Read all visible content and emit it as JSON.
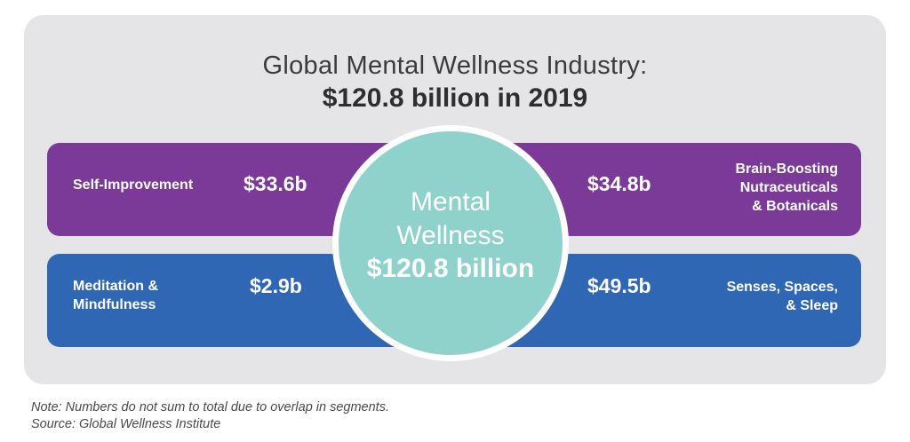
{
  "title": {
    "line1": "Global Mental Wellness Industry:",
    "line2": "$120.8 billion in 2019"
  },
  "segments": [
    {
      "label_lines": [
        "Self-Improvement"
      ],
      "value": "$33.6b",
      "color": "#7b3a97"
    },
    {
      "label_lines": [
        "Brain-Boosting",
        "Nutraceuticals",
        "& Botanicals"
      ],
      "value": "$34.8b",
      "color": "#7b3a97"
    },
    {
      "label_lines": [
        "Meditation &",
        "Mindfulness"
      ],
      "value": "$2.9b",
      "color": "#2f67b4"
    },
    {
      "label_lines": [
        "Senses, Spaces,",
        "& Sleep"
      ],
      "value": "$49.5b",
      "color": "#2f67b4"
    }
  ],
  "center": {
    "line1": "Mental",
    "line2": "Wellness",
    "line3": "$120.8 billion",
    "color": "#8fd1cb"
  },
  "notes": {
    "note": "Note: Numbers do not sum to total due to overlap in segments.",
    "source": "Source: Global Wellness Institute"
  }
}
